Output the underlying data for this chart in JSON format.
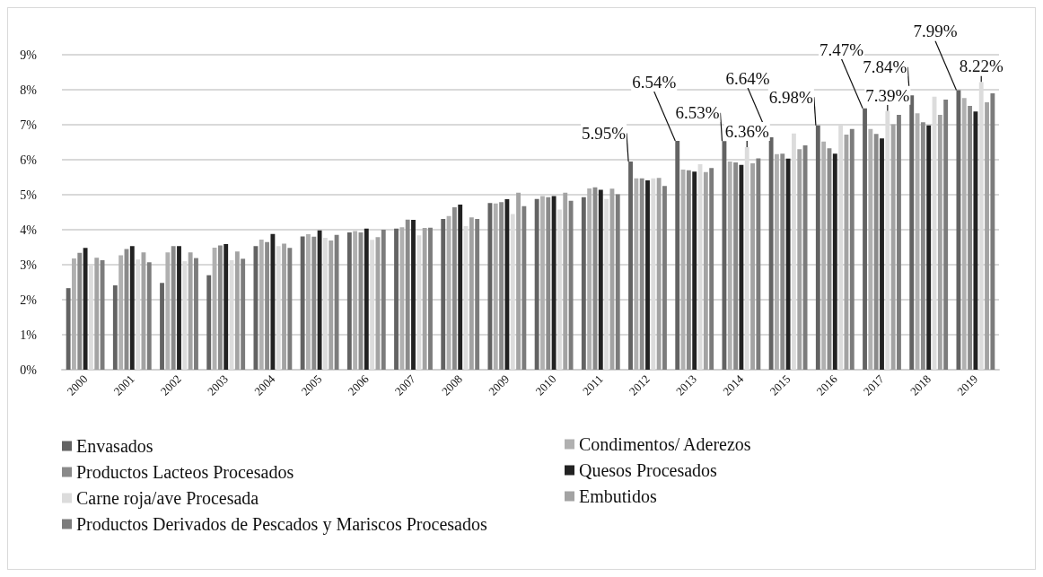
{
  "chart_data": {
    "type": "bar",
    "categories": [
      "2000",
      "2001",
      "2002",
      "2003",
      "2004",
      "2005",
      "2006",
      "2007",
      "2008",
      "2009",
      "2010",
      "2011",
      "2012",
      "2013",
      "2014",
      "2015",
      "2016",
      "2017",
      "2018",
      "2019"
    ],
    "series": [
      {
        "name": "Envasados",
        "color": "#636363",
        "values": [
          2.33,
          2.41,
          2.48,
          2.7,
          3.53,
          3.81,
          3.92,
          4.03,
          4.31,
          4.76,
          4.88,
          4.93,
          5.95,
          6.54,
          6.53,
          6.64,
          6.98,
          7.47,
          7.84,
          7.99
        ],
        "value_labels": [
          null,
          null,
          null,
          null,
          null,
          null,
          null,
          null,
          null,
          null,
          null,
          null,
          "5.95%",
          "6.54%",
          "6.53%",
          "6.64%",
          "6.98%",
          "7.47%",
          "7.84%",
          "7.99%"
        ]
      },
      {
        "name": "Condimentos/ Aderezos",
        "color": "#b0b0b0",
        "values": [
          3.18,
          3.27,
          3.35,
          3.49,
          3.72,
          3.87,
          3.96,
          4.07,
          4.39,
          4.75,
          4.96,
          5.18,
          5.47,
          5.72,
          5.95,
          6.16,
          6.52,
          6.88,
          7.33,
          7.76
        ]
      },
      {
        "name": "Productos Lacteos Procesados",
        "color": "#8a8a8a",
        "values": [
          3.34,
          3.45,
          3.53,
          3.55,
          3.65,
          3.8,
          3.92,
          4.29,
          4.64,
          4.79,
          4.93,
          5.21,
          5.47,
          5.7,
          5.92,
          6.17,
          6.33,
          6.74,
          7.07,
          7.54
        ]
      },
      {
        "name": "Quesos Procesados",
        "color": "#222222",
        "values": [
          3.48,
          3.53,
          3.53,
          3.59,
          3.88,
          3.98,
          4.03,
          4.28,
          4.72,
          4.87,
          4.96,
          5.14,
          5.41,
          5.66,
          5.85,
          6.03,
          6.17,
          6.61,
          6.98,
          7.38
        ]
      },
      {
        "name": "Carne roja/ave Procesada",
        "color": "#dcdcdc",
        "values": [
          3.01,
          3.15,
          3.1,
          3.13,
          3.53,
          3.77,
          3.71,
          3.84,
          4.1,
          4.45,
          4.58,
          4.88,
          5.47,
          5.87,
          6.36,
          6.75,
          6.98,
          7.39,
          7.8,
          8.22
        ],
        "value_labels": [
          null,
          null,
          null,
          null,
          null,
          null,
          null,
          null,
          null,
          null,
          null,
          null,
          null,
          null,
          "6.36%",
          null,
          null,
          "7.39%",
          null,
          "8.22%"
        ]
      },
      {
        "name": "Embutidos",
        "color": "#a3a3a3",
        "values": [
          3.2,
          3.35,
          3.35,
          3.38,
          3.6,
          3.69,
          3.79,
          4.05,
          4.35,
          5.06,
          5.06,
          5.17,
          5.48,
          5.65,
          5.9,
          6.3,
          6.72,
          7.01,
          7.28,
          7.64
        ]
      },
      {
        "name": "Productos Derivados de Pescados y Mariscos Procesados",
        "color": "#7c7c7c",
        "values": [
          3.13,
          3.07,
          3.19,
          3.17,
          3.48,
          3.85,
          4.0,
          4.06,
          4.31,
          4.67,
          4.83,
          5.01,
          5.25,
          5.76,
          6.04,
          6.41,
          6.88,
          7.28,
          7.72,
          7.9
        ]
      }
    ],
    "ylim": [
      0,
      9
    ],
    "yticks": [
      {
        "value": 0,
        "label": "0%"
      },
      {
        "value": 1,
        "label": "1%"
      },
      {
        "value": 2,
        "label": "2%"
      },
      {
        "value": 3,
        "label": "3%"
      },
      {
        "value": 4,
        "label": "4%"
      },
      {
        "value": 5,
        "label": "5%"
      },
      {
        "value": 6,
        "label": "6%"
      },
      {
        "value": 7,
        "label": "7%"
      },
      {
        "value": 8,
        "label": "8%"
      },
      {
        "value": 9,
        "label": "9%"
      }
    ],
    "grid": "y",
    "legend": "bottom"
  }
}
